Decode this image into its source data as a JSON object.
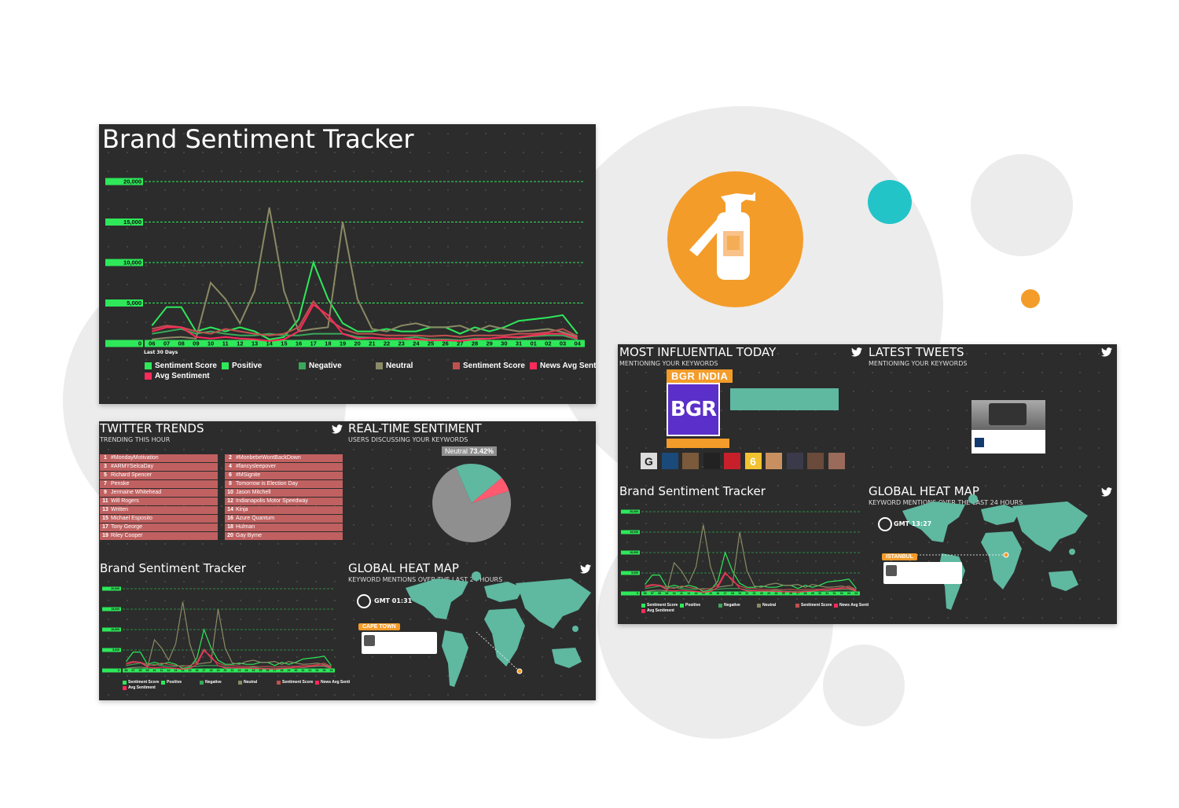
{
  "colors": {
    "panel_bg": "#2c2c2c",
    "accent_green": "#2ee85a",
    "accent_orange": "#f39c2a",
    "teal": "#5fb8a0",
    "trend_red": "#c06060",
    "neutral_gray": "#8f8f8f",
    "pink": "#ff5a70",
    "teal_circle": "#23c4c8"
  },
  "main_panel": {
    "title": "Brand Sentiment Tracker",
    "period": "Last 30 Days",
    "chart_data": {
      "type": "line",
      "x": [
        "06",
        "07",
        "08",
        "09",
        "10",
        "11",
        "12",
        "13",
        "14",
        "15",
        "16",
        "17",
        "18",
        "19",
        "20",
        "21",
        "22",
        "23",
        "24",
        "25",
        "26",
        "27",
        "28",
        "29",
        "30",
        "31",
        "01",
        "02",
        "03",
        "04"
      ],
      "ylim": [
        0,
        20000
      ],
      "yticks": [
        "20,000",
        "15,000",
        "10,000",
        "5,000",
        "0"
      ],
      "grid": true,
      "legend_position": "bottom",
      "series": [
        {
          "name": "Positive",
          "color": "#2ee85a",
          "values": [
            2200,
            4500,
            4500,
            1500,
            2000,
            1500,
            2000,
            1500,
            500,
            800,
            3000,
            10000,
            5500,
            2500,
            1500,
            1500,
            1800,
            1500,
            1500,
            2000,
            2000,
            1200,
            2000,
            1500,
            2000,
            2800,
            3000,
            3200,
            3500,
            1200
          ]
        },
        {
          "name": "Negative",
          "color": "#3aa85a",
          "values": [
            1200,
            1500,
            1800,
            1200,
            1500,
            1200,
            1000,
            1000,
            1200,
            1000,
            1000,
            1200,
            1200,
            1200,
            800,
            700,
            600,
            600,
            800,
            500,
            500,
            400,
            600,
            600,
            800,
            700,
            900,
            1000,
            1000,
            500
          ]
        },
        {
          "name": "Neutral",
          "color": "#8a8a65",
          "values": [
            500,
            700,
            800,
            600,
            7500,
            5500,
            2500,
            6500,
            16800,
            6500,
            1500,
            1800,
            2000,
            15000,
            5500,
            1800,
            1500,
            2200,
            2500,
            2000,
            2000,
            2200,
            1500,
            2200,
            1800,
            1500,
            1600,
            1800,
            1400,
            800
          ]
        },
        {
          "name": "Sentiment Score",
          "color": "#c05050",
          "values": [
            1800,
            2200,
            2000,
            1500,
            1200,
            1800,
            1500,
            1200,
            1000,
            1200,
            2000,
            5200,
            3000,
            1800,
            1200,
            1200,
            1000,
            1000,
            1000,
            900,
            1000,
            800,
            1000,
            1000,
            1000,
            1200,
            1200,
            1400,
            1800,
            900
          ]
        },
        {
          "name": "Avg Sentiment",
          "color": "#ff2a5a",
          "values": [
            1500,
            2000,
            2000,
            800,
            600,
            800,
            600,
            500,
            300,
            500,
            1500,
            4800,
            3500,
            1200,
            600,
            700,
            600,
            600,
            500,
            400,
            400,
            300,
            500,
            600,
            800,
            800,
            1000,
            1200,
            1200,
            600
          ]
        }
      ]
    },
    "legend": [
      "Sentiment Score",
      "Positive",
      "Negative",
      "Neutral",
      "Sentiment Score",
      "News Avg Senti",
      "Avg Sentiment"
    ]
  },
  "trends_panel": {
    "title": "TWITTER TRENDS",
    "subtitle": "TRENDING THIS HOUR",
    "left": [
      {
        "rank": "1",
        "text": "#MondayMotivation"
      },
      {
        "rank": "3",
        "text": "#ARMYSelcaDay"
      },
      {
        "rank": "5",
        "text": "Richard Spencer"
      },
      {
        "rank": "7",
        "text": "Penske"
      },
      {
        "rank": "9",
        "text": "Jermaine Whitehead"
      },
      {
        "rank": "11",
        "text": "Will Rogers"
      },
      {
        "rank": "13",
        "text": "Written"
      },
      {
        "rank": "15",
        "text": "Michael Esposito"
      },
      {
        "rank": "17",
        "text": "Tony George"
      },
      {
        "rank": "19",
        "text": "Riley Cooper"
      }
    ],
    "right": [
      {
        "rank": "2",
        "text": "#MonbebeWontBackDown"
      },
      {
        "rank": "4",
        "text": "#fancysleepover"
      },
      {
        "rank": "6",
        "text": "#MSignite"
      },
      {
        "rank": "8",
        "text": "Tomorrow is Election Day"
      },
      {
        "rank": "10",
        "text": "Jason Mitchell"
      },
      {
        "rank": "12",
        "text": "Indianapolis Motor Speedway"
      },
      {
        "rank": "14",
        "text": "Kinja"
      },
      {
        "rank": "16",
        "text": "Azure Quantum"
      },
      {
        "rank": "18",
        "text": "Hulman"
      },
      {
        "rank": "20",
        "text": "Gay Byrne"
      }
    ],
    "realtime_title": "REAL-TIME SENTIMENT",
    "realtime_subtitle": "USERS DISCUSSING YOUR KEYWORDS",
    "neutral_label": "Neutral",
    "neutral_pct": "73.42%",
    "pie": {
      "neutral": 73.42,
      "positive": 20.5,
      "negative": 6.08
    },
    "small_tracker_title": "Brand Sentiment Tracker",
    "heatmap_title": "GLOBAL HEAT MAP",
    "heatmap_subtitle": "KEYWORD MENTIONS OVER THE LAST 24 HOURS",
    "clock": "GMT 01:31",
    "city": "CAPE TOWN",
    "small_legend": [
      "Sentiment Score",
      "Positive",
      "Negative",
      "Neutral",
      "Sentiment Score",
      "News Avg Senti",
      "Avg Sentiment"
    ]
  },
  "influence_panel": {
    "title": "MOST INFLUENTIAL TODAY",
    "subtitle": "MENTIONING YOUR KEYWORDS",
    "account": "BGR INDIA",
    "logo_text": "BGR",
    "latest_title": "LATEST TWEETS",
    "latest_subtitle": "MENTIONING YOUR KEYWORDS",
    "tracker_title": "Brand Sentiment Tracker",
    "heatmap_title": "GLOBAL HEAT MAP",
    "heatmap_subtitle": "KEYWORD MENTIONS OVER THE LAST 24 HOURS",
    "clock": "GMT 13:27",
    "city": "ISTANBUL",
    "small_legend": [
      "Sentiment Score",
      "Positive",
      "Negative",
      "Neutral",
      "Sentiment Score",
      "News Avg Senti",
      "Avg Sentiment"
    ],
    "avatar_glyphs": [
      "G",
      "",
      "",
      "",
      "",
      "6",
      "",
      "",
      "",
      ""
    ]
  }
}
